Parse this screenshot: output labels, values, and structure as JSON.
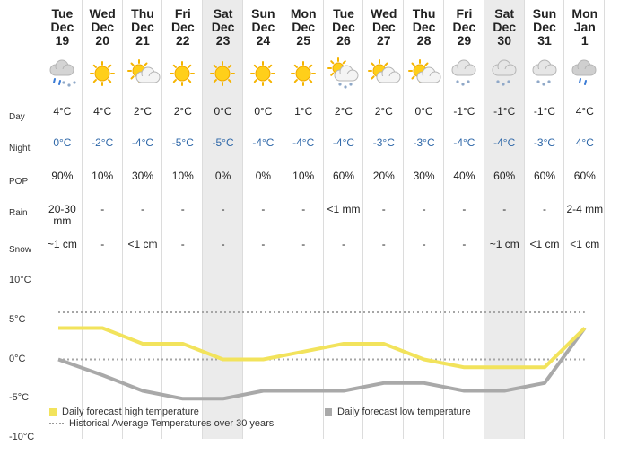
{
  "days": [
    {
      "dow": "Tue",
      "mon": "Dec",
      "date": "19",
      "icon": "snow-rain-icon",
      "day_temp": "4°C",
      "night_temp": "0°C",
      "pop": "90%",
      "rain": "20-30 mm",
      "snow": "~1 cm"
    },
    {
      "dow": "Wed",
      "mon": "Dec",
      "date": "20",
      "icon": "sun-icon",
      "day_temp": "4°C",
      "night_temp": "-2°C",
      "pop": "10%",
      "rain": "-",
      "snow": "-"
    },
    {
      "dow": "Thu",
      "mon": "Dec",
      "date": "21",
      "icon": "sun-cloud-icon",
      "day_temp": "2°C",
      "night_temp": "-4°C",
      "pop": "30%",
      "rain": "-",
      "snow": "<1 cm"
    },
    {
      "dow": "Fri",
      "mon": "Dec",
      "date": "22",
      "icon": "sun-icon",
      "day_temp": "2°C",
      "night_temp": "-5°C",
      "pop": "10%",
      "rain": "-",
      "snow": "-"
    },
    {
      "dow": "Sat",
      "mon": "Dec",
      "date": "23",
      "icon": "sun-icon",
      "day_temp": "0°C",
      "night_temp": "-5°C",
      "pop": "0%",
      "rain": "-",
      "snow": "-"
    },
    {
      "dow": "Sun",
      "mon": "Dec",
      "date": "24",
      "icon": "sun-icon",
      "day_temp": "0°C",
      "night_temp": "-4°C",
      "pop": "0%",
      "rain": "-",
      "snow": "-"
    },
    {
      "dow": "Mon",
      "mon": "Dec",
      "date": "25",
      "icon": "sun-icon",
      "day_temp": "1°C",
      "night_temp": "-4°C",
      "pop": "10%",
      "rain": "-",
      "snow": "-"
    },
    {
      "dow": "Tue",
      "mon": "Dec",
      "date": "26",
      "icon": "sun-cloud-snow-icon",
      "day_temp": "2°C",
      "night_temp": "-4°C",
      "pop": "60%",
      "rain": "<1 mm",
      "snow": "-"
    },
    {
      "dow": "Wed",
      "mon": "Dec",
      "date": "27",
      "icon": "sun-cloud-icon",
      "day_temp": "2°C",
      "night_temp": "-3°C",
      "pop": "20%",
      "rain": "-",
      "snow": "-"
    },
    {
      "dow": "Thu",
      "mon": "Dec",
      "date": "28",
      "icon": "sun-cloud-icon",
      "day_temp": "0°C",
      "night_temp": "-3°C",
      "pop": "30%",
      "rain": "-",
      "snow": "-"
    },
    {
      "dow": "Fri",
      "mon": "Dec",
      "date": "29",
      "icon": "cloud-snow-icon",
      "day_temp": "-1°C",
      "night_temp": "-4°C",
      "pop": "40%",
      "rain": "-",
      "snow": "-"
    },
    {
      "dow": "Sat",
      "mon": "Dec",
      "date": "30",
      "icon": "cloud-snow-icon",
      "day_temp": "-1°C",
      "night_temp": "-4°C",
      "pop": "60%",
      "rain": "-",
      "snow": "~1 cm"
    },
    {
      "dow": "Sun",
      "mon": "Dec",
      "date": "31",
      "icon": "cloud-snow-icon",
      "day_temp": "-1°C",
      "night_temp": "-3°C",
      "pop": "60%",
      "rain": "-",
      "snow": "<1 cm"
    },
    {
      "dow": "Mon",
      "mon": "Jan",
      "date": "1",
      "icon": "cloud-rain-icon",
      "day_temp": "4°C",
      "night_temp": "4°C",
      "pop": "60%",
      "rain": "2-4 mm",
      "snow": "<1 cm"
    }
  ],
  "row_labels": {
    "day": "Day",
    "night": "Night",
    "pop": "POP",
    "rain": "Rain",
    "snow": "Snow"
  },
  "colors": {
    "high": "#f2e35c",
    "low": "#a9a9a9",
    "avg": "#a6a6a6",
    "night": "#2e67a8",
    "weekend_bg": "#ebebeb"
  },
  "chart_data": {
    "type": "line",
    "x": [
      "Dec 19",
      "Dec 20",
      "Dec 21",
      "Dec 22",
      "Dec 23",
      "Dec 24",
      "Dec 25",
      "Dec 26",
      "Dec 27",
      "Dec 28",
      "Dec 29",
      "Dec 30",
      "Dec 31",
      "Jan 1"
    ],
    "series": [
      {
        "name": "Daily forecast high temperature",
        "values": [
          4,
          4,
          2,
          2,
          0,
          0,
          1,
          2,
          2,
          0,
          -1,
          -1,
          -1,
          4
        ]
      },
      {
        "name": "Daily forecast low temperature",
        "values": [
          0,
          -2,
          -4,
          -5,
          -5,
          -4,
          -4,
          -4,
          -3,
          -3,
          -4,
          -4,
          -3,
          4
        ]
      },
      {
        "name": "Historical Average Temperatures over 30 years",
        "values": [
          6,
          6,
          6,
          6,
          6,
          6,
          6,
          6,
          6,
          6,
          6,
          6,
          6,
          6
        ]
      },
      {
        "name": "Historical Average Temperatures over 30 years",
        "values": [
          0,
          0,
          0,
          0,
          0,
          0,
          0,
          0,
          0,
          0,
          0,
          0,
          0,
          0
        ]
      }
    ],
    "ylim": [
      -10,
      10
    ],
    "yticks": [
      "10°C",
      "5°C",
      "0°C",
      "-5°C",
      "-10°C"
    ],
    "legend": {
      "high": "Daily forecast high temperature",
      "low": "Daily forecast low temperature",
      "avg": "Historical Average Temperatures over 30 years"
    }
  }
}
